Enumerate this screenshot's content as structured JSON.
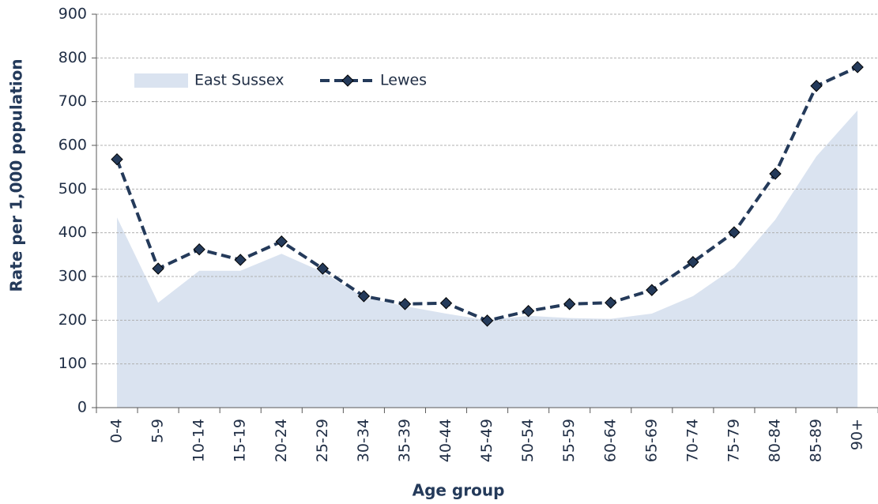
{
  "chart_data": {
    "type": "area_line",
    "x_label": "Age group",
    "y_label": "Rate per 1,000 population",
    "categories": [
      "0-4",
      "5-9",
      "10-14",
      "15-19",
      "20-24",
      "25-29",
      "30-34",
      "35-39",
      "40-44",
      "45-49",
      "50-54",
      "55-59",
      "60-64",
      "65-69",
      "70-74",
      "75-79",
      "80-84",
      "85-89",
      "90+"
    ],
    "series": [
      {
        "name": "East Sussex",
        "kind": "area",
        "color": "#dae3f0",
        "values": [
          435,
          240,
          313,
          313,
          352,
          310,
          252,
          232,
          215,
          200,
          210,
          205,
          203,
          215,
          255,
          320,
          430,
          575,
          680
        ]
      },
      {
        "name": "Lewes",
        "kind": "line",
        "color": "#243a5a",
        "values": [
          568,
          318,
          362,
          338,
          380,
          318,
          255,
          237,
          239,
          199,
          221,
          237,
          240,
          269,
          333,
          401,
          535,
          736,
          779
        ]
      }
    ],
    "ylim": [
      0,
      900
    ],
    "yticks": [
      0,
      100,
      200,
      300,
      400,
      500,
      600,
      700,
      800,
      900
    ],
    "grid": true,
    "legend": "upper left"
  }
}
